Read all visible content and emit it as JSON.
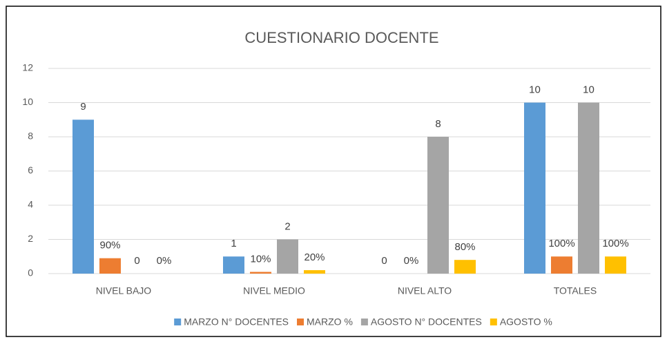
{
  "chart_data": {
    "type": "bar",
    "title": "CUESTIONARIO DOCENTE",
    "categories": [
      "NIVEL BAJO",
      "NIVEL MEDIO",
      "NIVEL ALTO",
      "TOTALES"
    ],
    "series": [
      {
        "name": "MARZO N° DOCENTES",
        "color": "#5b9bd5",
        "values": [
          9,
          1,
          0,
          10
        ]
      },
      {
        "name": "MARZO %",
        "color": "#ed7d31",
        "values": [
          0.9,
          0.1,
          0,
          1
        ],
        "value_labels": [
          "90%",
          "10%",
          "0%",
          "100%"
        ]
      },
      {
        "name": "AGOSTO  N° DOCENTES",
        "color": "#a5a5a5",
        "values": [
          0,
          2,
          8,
          10
        ]
      },
      {
        "name": "AGOSTO  %",
        "color": "#ffc000",
        "values": [
          0,
          0.2,
          0.8,
          1
        ],
        "value_labels": [
          "0%",
          "20%",
          "80%",
          "100%"
        ]
      }
    ],
    "ylim": [
      0,
      12
    ],
    "yticks": [
      0,
      2,
      4,
      6,
      8,
      10,
      12
    ],
    "grid": true,
    "legend": "bottom"
  }
}
